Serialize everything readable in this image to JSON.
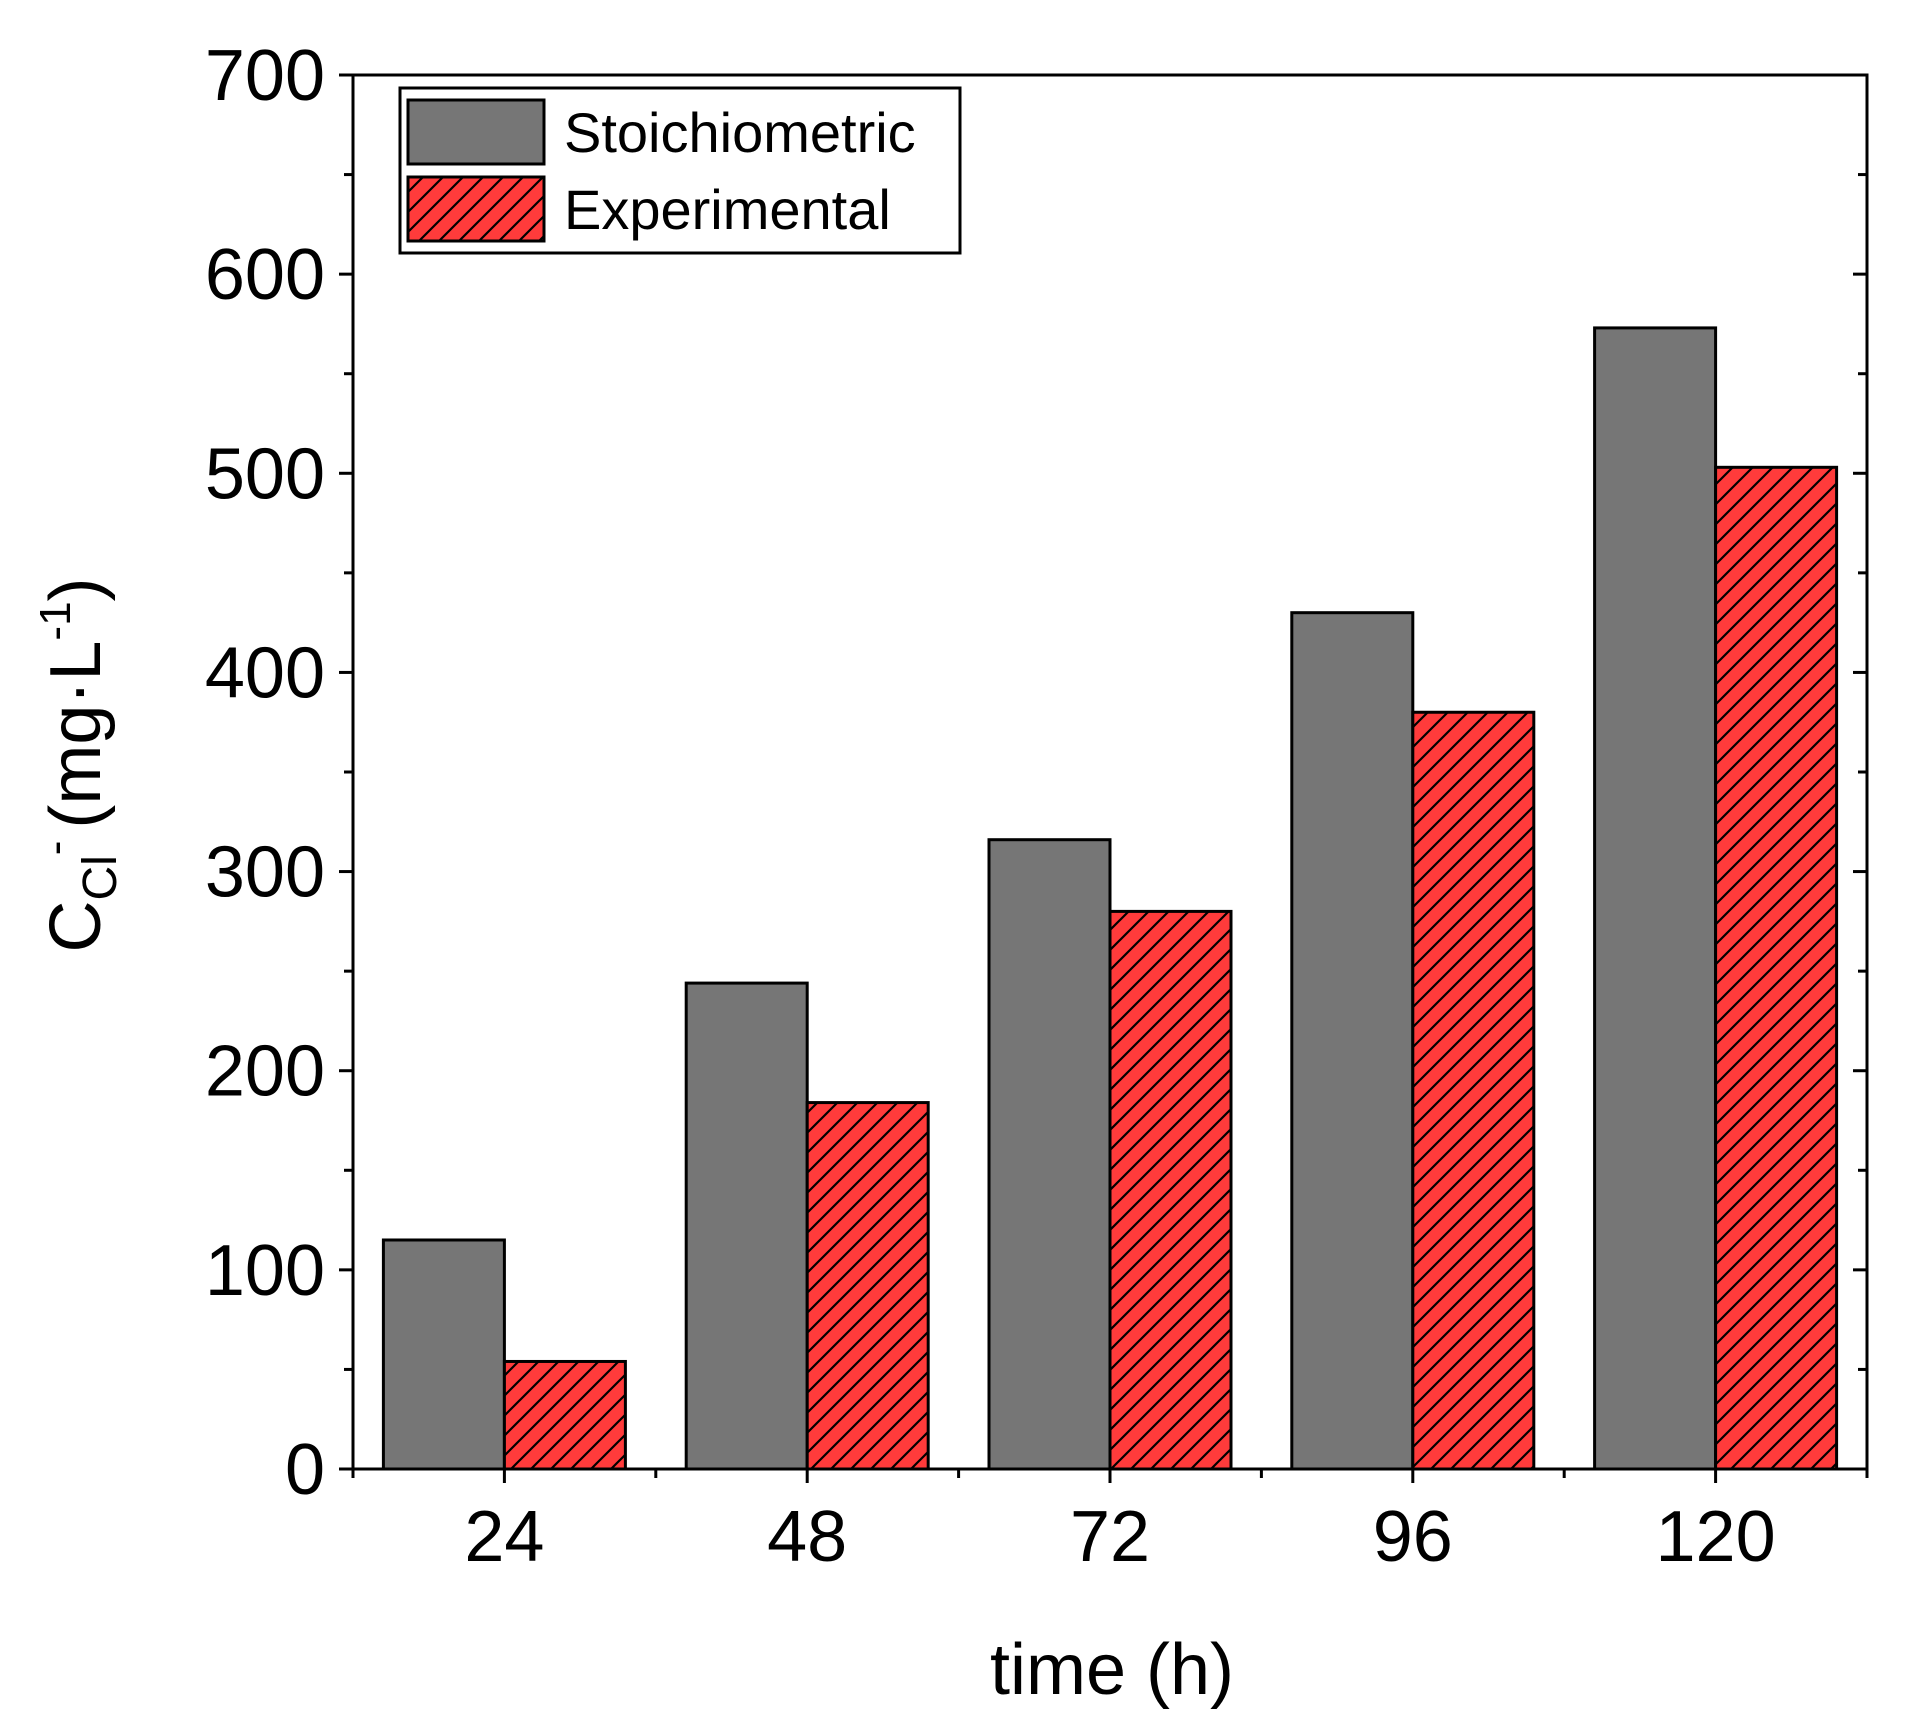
{
  "chart_data": {
    "type": "bar",
    "title": "",
    "xlabel": "time (h)",
    "ylabel": {
      "main": "C",
      "subscript": "Cl",
      "superscript": "-",
      "units_prefix": "(mg·L",
      "units_exponent": "-1",
      "units_suffix": ")"
    },
    "categories": [
      "24",
      "48",
      "72",
      "96",
      "120"
    ],
    "series": [
      {
        "name": "Stoichiometric",
        "values": [
          115,
          244,
          316,
          430,
          573
        ],
        "color": "#767676",
        "pattern": "solid"
      },
      {
        "name": "Experimental",
        "values": [
          54,
          184,
          280,
          380,
          503
        ],
        "color": "#ff3b3b",
        "pattern": "diagonal-hatch"
      }
    ],
    "ylim": [
      0,
      700
    ],
    "yticks": [
      0,
      100,
      200,
      300,
      400,
      500,
      600,
      700
    ],
    "y_minor_step": 50,
    "grid": false,
    "legend": {
      "position": "top-left",
      "entries": [
        "Stoichiometric",
        "Experimental"
      ]
    }
  }
}
